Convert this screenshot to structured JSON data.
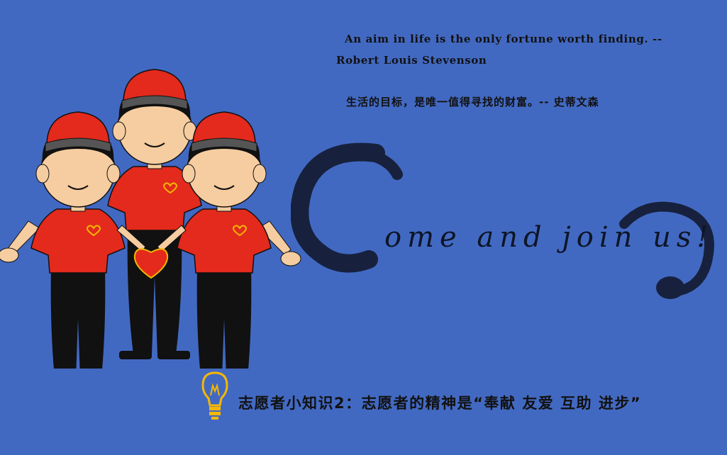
{
  "quote": {
    "english_line1": "An aim in life is the only fortune worth finding. --",
    "english_line2": "Robert Louis Stevenson",
    "chinese": "生活的目标，是唯一值得寻找的财富。-- 史蒂文森"
  },
  "call_to_action": "ome and join us!",
  "tip": {
    "text": "志愿者小知识2：志愿者的精神是“奉献 友爱 互助 进步”",
    "icon": "lightbulb-icon"
  },
  "colors": {
    "background": "#4269c2",
    "shirt": "#e32a1c",
    "cap": "#e32a1c",
    "trousers": "#111111",
    "skin": "#f6cda0",
    "heart": "#e32a1c",
    "heart_outline": "#f5b800",
    "brush_ink": "#17213d",
    "bulb": "#f5b800"
  }
}
